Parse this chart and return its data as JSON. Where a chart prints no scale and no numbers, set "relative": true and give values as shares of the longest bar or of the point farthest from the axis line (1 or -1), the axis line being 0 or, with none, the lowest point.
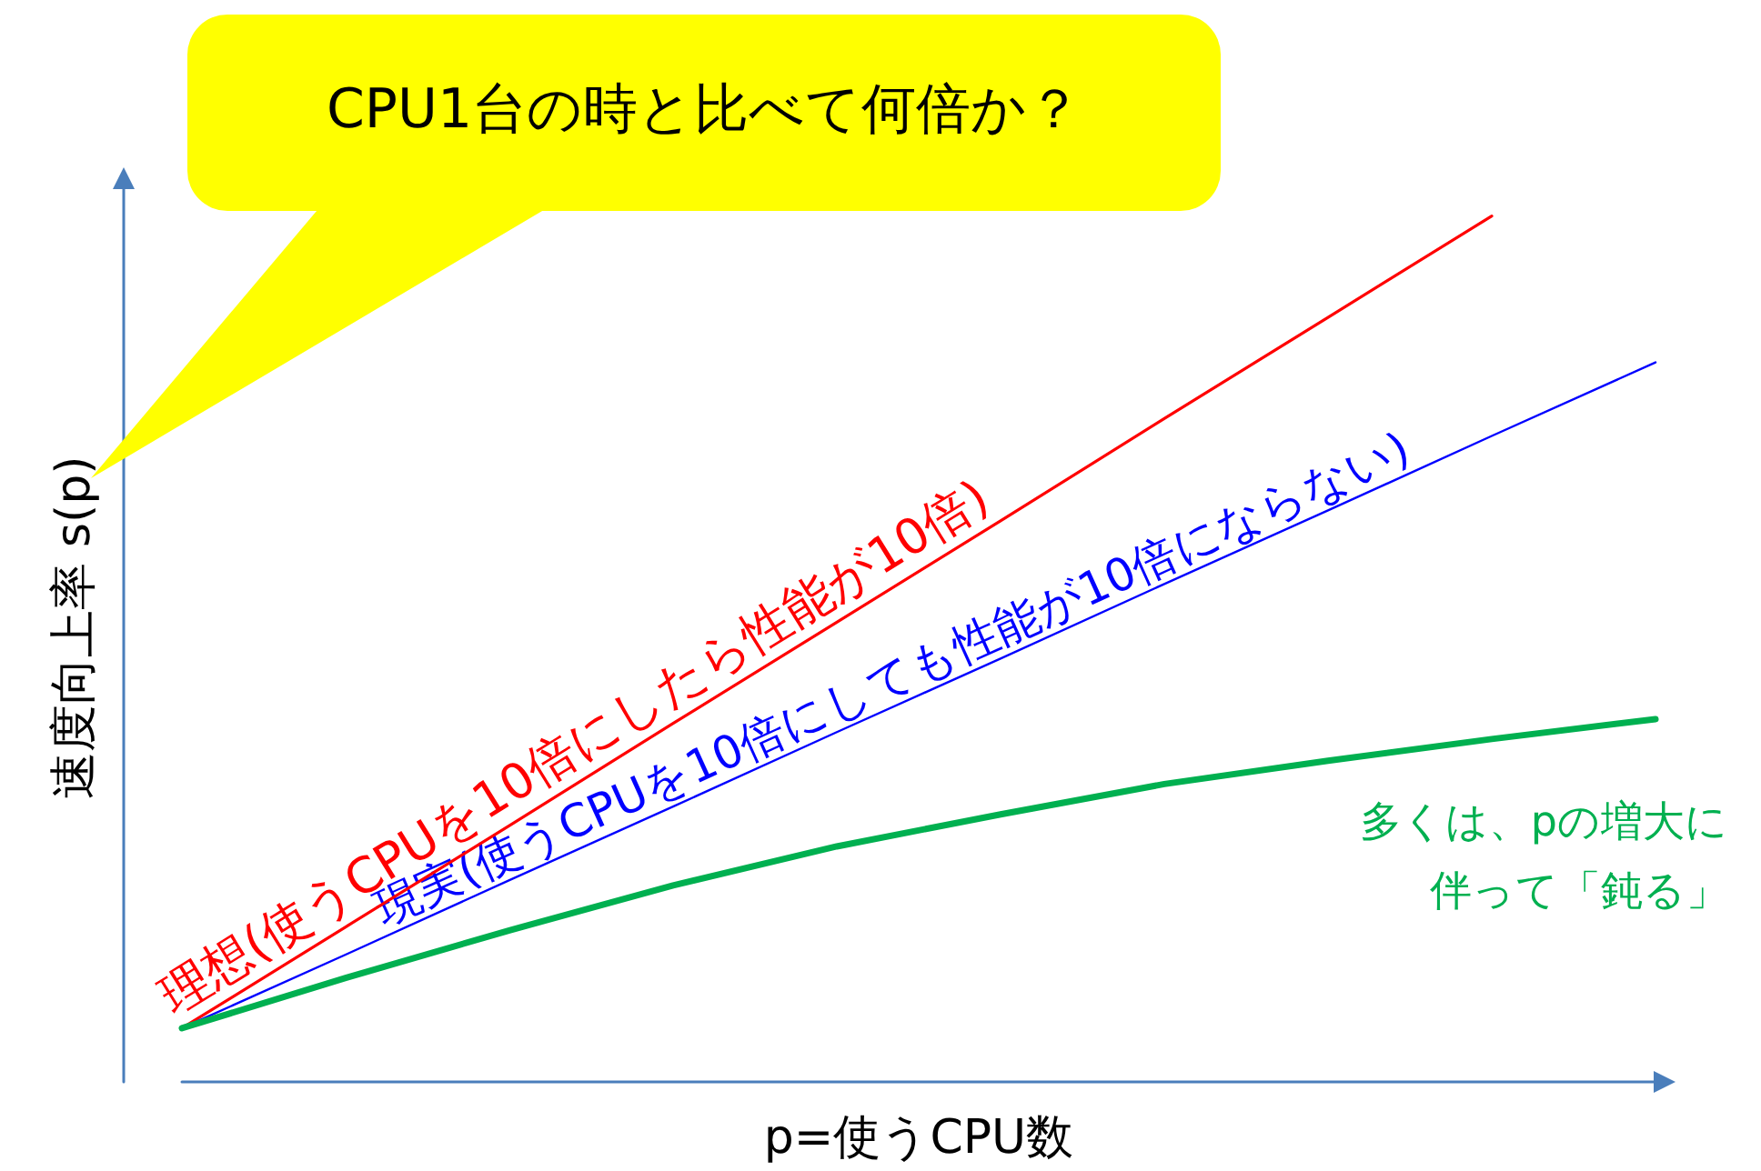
{
  "chart_data": {
    "type": "line",
    "relative": true,
    "xlabel": "p=使うCPU数",
    "ylabel": "速度向上率 s(p)",
    "categories": [
      null,
      null,
      null,
      null,
      null,
      null,
      null,
      null,
      null,
      null
    ],
    "series": [
      {
        "name": "理想(使うCPUを10倍にしたら性能が10倍)",
        "color": "#ff0000",
        "values": [
          0.062,
          0.179,
          0.296,
          0.414,
          0.531,
          0.648,
          0.766,
          0.883,
          1,
          null
        ]
      },
      {
        "name": "現実(使うCPUを10倍にしても性能が10倍にならない)",
        "color": "#0000ff",
        "values": [
          0.062,
          0.147,
          0.233,
          0.318,
          0.404,
          0.489,
          0.575,
          0.66,
          0.746,
          0.831
        ]
      },
      {
        "name": "多くは、pの増大に伴って「鈍る」",
        "color": "#00b050",
        "values": [
          0.062,
          0.12,
          0.175,
          0.227,
          0.272,
          0.309,
          0.344,
          0.371,
          0.396,
          0.419
        ]
      }
    ],
    "annotations": [
      "CPU1台の時と比べて何倍か？"
    ],
    "grid": false,
    "marker": "none",
    "line_style": "solid"
  }
}
